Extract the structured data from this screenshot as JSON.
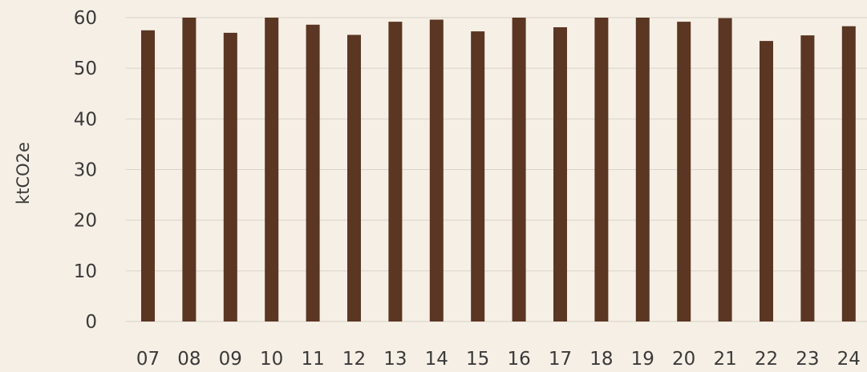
{
  "chart_data": {
    "type": "bar",
    "title": "",
    "xlabel": "",
    "ylabel": "ktCO2e",
    "categories": [
      "07",
      "08",
      "09",
      "10",
      "11",
      "12",
      "13",
      "14",
      "15",
      "16",
      "17",
      "18",
      "19",
      "20",
      "21",
      "22",
      "23",
      "24"
    ],
    "values": [
      57.5,
      60.2,
      57.0,
      60.2,
      58.6,
      56.6,
      59.2,
      59.6,
      57.3,
      60.2,
      58.1,
      60.2,
      60.2,
      59.2,
      59.9,
      55.4,
      56.5,
      58.3
    ],
    "ylim": [
      0,
      60
    ],
    "yticks": [
      0,
      10,
      20,
      30,
      40,
      50,
      60
    ],
    "grid": true,
    "legend": "none",
    "colors": {
      "bar": "#5a3623",
      "grid": "#d8d2c8",
      "background": "#f6efe5",
      "text": "#3a3a3a"
    }
  }
}
